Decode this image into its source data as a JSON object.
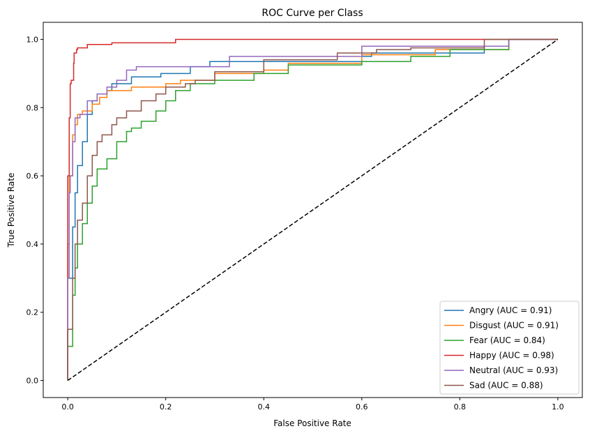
{
  "chart_data": {
    "type": "line",
    "title": "ROC Curve per Class",
    "xlabel": "False Positive Rate",
    "ylabel": "True Positive Rate",
    "xlim": [
      -0.05,
      1.05
    ],
    "ylim": [
      -0.05,
      1.05
    ],
    "xticks": [
      "0.0",
      "0.2",
      "0.4",
      "0.6",
      "0.8",
      "1.0"
    ],
    "yticks": [
      "0.0",
      "0.2",
      "0.4",
      "0.6",
      "0.8",
      "1.0"
    ],
    "grid": false,
    "legend_position": "lower-right",
    "series": [
      {
        "name": "Angry (AUC = 0.91)",
        "color": "#1f77b4",
        "x": [
          0,
          0.01,
          0.015,
          0.02,
          0.03,
          0.04,
          0.05,
          0.06,
          0.08,
          0.09,
          0.13,
          0.19,
          0.25,
          0.29,
          0.31,
          0.6,
          0.62,
          0.85,
          0.9,
          1
        ],
        "y": [
          0,
          0.3,
          0.45,
          0.55,
          0.63,
          0.7,
          0.78,
          0.82,
          0.84,
          0.85,
          0.87,
          0.89,
          0.9,
          0.92,
          0.935,
          0.935,
          0.95,
          0.96,
          0.98,
          1
        ]
      },
      {
        "name": "Disgust (AUC = 0.91)",
        "color": "#ff7f0e",
        "x": [
          0,
          0.003,
          0.01,
          0.015,
          0.02,
          0.03,
          0.05,
          0.065,
          0.08,
          0.13,
          0.2,
          0.23,
          0.3,
          0.4,
          0.45,
          0.6,
          0.75,
          0.9,
          1
        ],
        "y": [
          0,
          0.4,
          0.6,
          0.72,
          0.75,
          0.78,
          0.79,
          0.81,
          0.83,
          0.85,
          0.86,
          0.87,
          0.88,
          0.9,
          0.91,
          0.93,
          0.955,
          0.97,
          1
        ]
      },
      {
        "name": "Fear (AUC = 0.84)",
        "color": "#2ca02c",
        "x": [
          0,
          0.01,
          0.015,
          0.02,
          0.03,
          0.04,
          0.05,
          0.06,
          0.08,
          0.1,
          0.12,
          0.13,
          0.15,
          0.18,
          0.2,
          0.22,
          0.25,
          0.3,
          0.38,
          0.45,
          0.6,
          0.7,
          0.78,
          0.9,
          1
        ],
        "y": [
          0,
          0.1,
          0.25,
          0.33,
          0.4,
          0.46,
          0.52,
          0.57,
          0.62,
          0.65,
          0.7,
          0.73,
          0.74,
          0.76,
          0.79,
          0.82,
          0.85,
          0.87,
          0.88,
          0.9,
          0.925,
          0.935,
          0.95,
          0.97,
          1
        ]
      },
      {
        "name": "Happy (AUC = 0.98)",
        "color": "#d62728",
        "x": [
          0,
          0.003,
          0.005,
          0.007,
          0.012,
          0.013,
          0.018,
          0.02,
          0.04,
          0.09,
          0.22,
          0.85,
          1
        ],
        "y": [
          0,
          0.6,
          0.77,
          0.87,
          0.88,
          0.93,
          0.96,
          0.97,
          0.975,
          0.985,
          0.99,
          1,
          1
        ]
      },
      {
        "name": "Neutral (AUC = 0.93)",
        "color": "#9467bd",
        "x": [
          0,
          0.003,
          0.005,
          0.01,
          0.015,
          0.025,
          0.04,
          0.06,
          0.08,
          0.1,
          0.12,
          0.14,
          0.33,
          0.34,
          0.6,
          0.9,
          1
        ],
        "y": [
          0,
          0.3,
          0.55,
          0.6,
          0.7,
          0.77,
          0.78,
          0.82,
          0.84,
          0.86,
          0.88,
          0.91,
          0.92,
          0.95,
          0.95,
          0.98,
          1
        ]
      },
      {
        "name": "Sad (AUC = 0.88)",
        "color": "#8c564b",
        "x": [
          0,
          0.01,
          0.015,
          0.02,
          0.03,
          0.04,
          0.05,
          0.06,
          0.07,
          0.09,
          0.1,
          0.12,
          0.15,
          0.18,
          0.2,
          0.24,
          0.26,
          0.3,
          0.4,
          0.55,
          0.63,
          0.7,
          0.85,
          1
        ],
        "y": [
          0,
          0.15,
          0.3,
          0.4,
          0.47,
          0.52,
          0.6,
          0.66,
          0.7,
          0.72,
          0.75,
          0.77,
          0.79,
          0.82,
          0.84,
          0.86,
          0.87,
          0.88,
          0.905,
          0.94,
          0.96,
          0.97,
          0.975,
          1
        ]
      }
    ],
    "reference_line": {
      "x": [
        0,
        1
      ],
      "y": [
        0,
        1
      ],
      "color": "#000000",
      "style": "dashed"
    }
  }
}
